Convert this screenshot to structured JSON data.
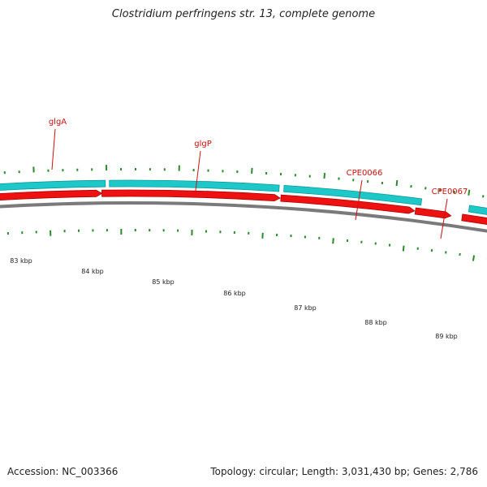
{
  "title": "Clostridium perfringens str. 13, complete genome",
  "footer": {
    "accession_label": "Accession:",
    "accession": "NC_003366",
    "topology_label": "Topology:",
    "topology": "circular",
    "length_label": "Length:",
    "length": "3,031,430 bp",
    "genes_label": "Genes:",
    "genes": "2,786",
    "accession_text": "Accession: NC_003366",
    "summary_text": "Topology: circular; Length: 3,031,430 bp; Genes: 2,786"
  },
  "gene_labels": [
    "glgA",
    "glgP",
    "CPE0066",
    "CPE0067"
  ],
  "scale_labels": [
    "83 kbp",
    "84 kbp",
    "85 kbp",
    "86 kbp",
    "87 kbp",
    "88 kbp",
    "89 kbp"
  ],
  "colors": {
    "forward_strand": "#1ec8c8",
    "reverse_strand": "#ee1111",
    "backbone": "#7a7a7a",
    "gene_label": "#cc1111",
    "tick": "#2a8a2a",
    "text": "#222222"
  }
}
